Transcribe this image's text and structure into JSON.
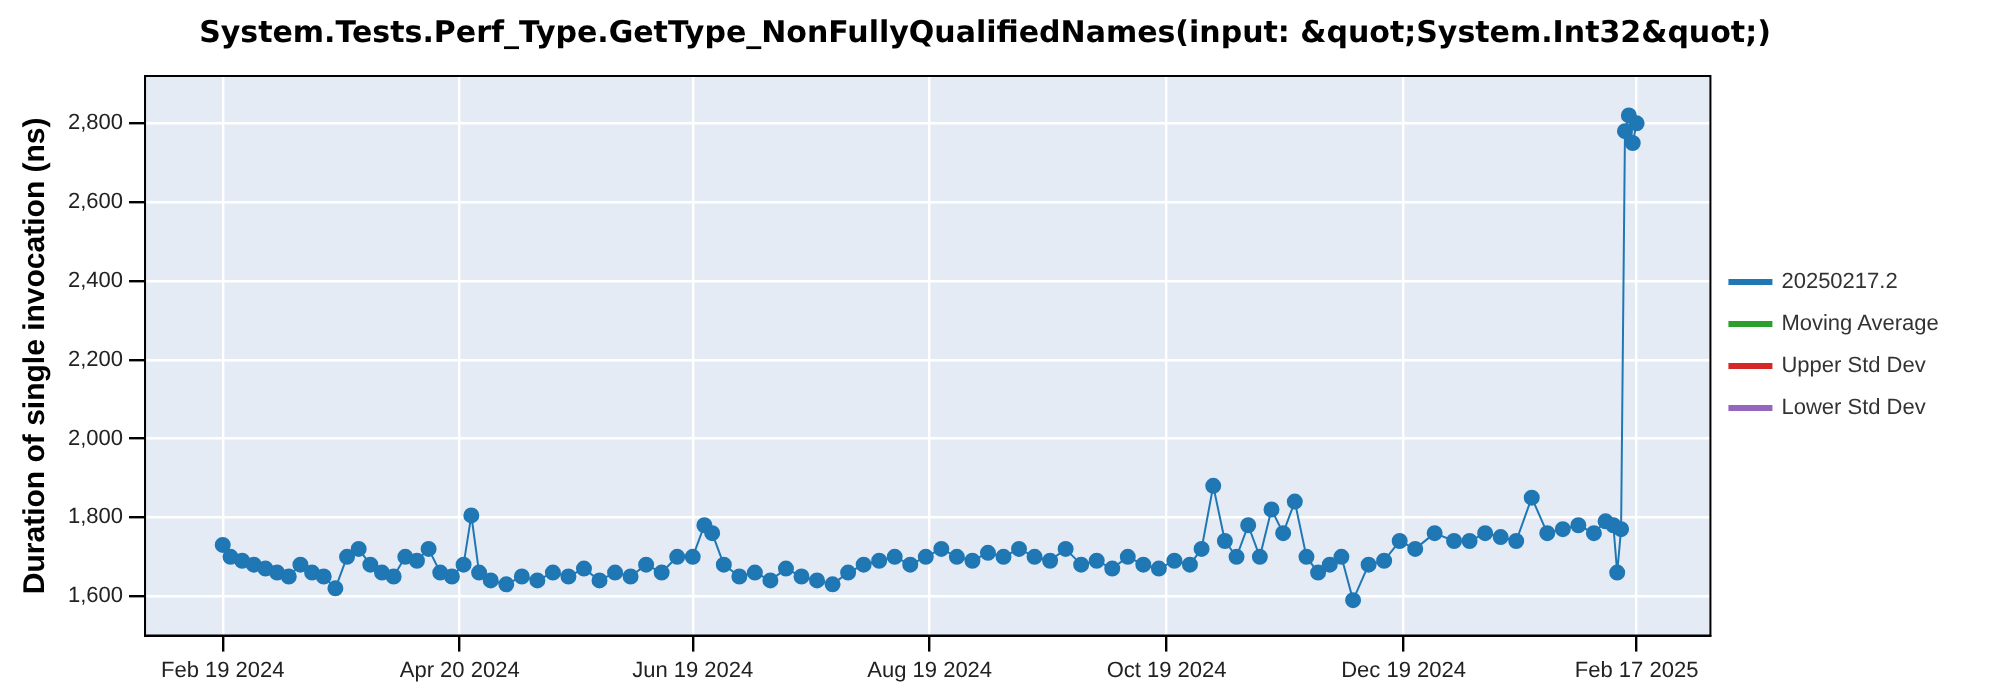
{
  "chart_data": {
    "type": "line",
    "title": "System.Tests.Perf_Type.GetType_NonFullyQualifiedNames(input: &quot;System.Int32&quot;)",
    "ylabel": "Duration of single invocation (ns)",
    "xlim": [
      "2024-01-30",
      "2025-03-08"
    ],
    "xticks": [
      {
        "value": "2024-02-19",
        "label": "Feb 19 2024"
      },
      {
        "value": "2024-04-20",
        "label": "Apr 20 2024"
      },
      {
        "value": "2024-06-19",
        "label": "Jun 19 2024"
      },
      {
        "value": "2024-08-19",
        "label": "Aug 19 2024"
      },
      {
        "value": "2024-10-19",
        "label": "Oct 19 2024"
      },
      {
        "value": "2024-12-19",
        "label": "Dec 19 2024"
      },
      {
        "value": "2025-02-17",
        "label": "Feb 17 2025"
      }
    ],
    "ylim": [
      1500,
      2920
    ],
    "yticks": [
      {
        "value": 1600,
        "label": "1,600"
      },
      {
        "value": 1800,
        "label": "1,800"
      },
      {
        "value": 2000,
        "label": "2,000"
      },
      {
        "value": 2200,
        "label": "2,200"
      },
      {
        "value": 2400,
        "label": "2,400"
      },
      {
        "value": 2600,
        "label": "2,600"
      },
      {
        "value": 2800,
        "label": "2,800"
      }
    ],
    "grid": true,
    "legend": "right",
    "marker": "circle",
    "series": [
      {
        "name": "20250217.2",
        "color": "#1f77b4",
        "x": [
          "2024-02-19",
          "2024-02-21",
          "2024-02-24",
          "2024-02-27",
          "2024-03-01",
          "2024-03-04",
          "2024-03-07",
          "2024-03-10",
          "2024-03-13",
          "2024-03-16",
          "2024-03-19",
          "2024-03-22",
          "2024-03-25",
          "2024-03-28",
          "2024-03-31",
          "2024-04-03",
          "2024-04-06",
          "2024-04-09",
          "2024-04-12",
          "2024-04-15",
          "2024-04-18",
          "2024-04-21",
          "2024-04-23",
          "2024-04-25",
          "2024-04-28",
          "2024-05-02",
          "2024-05-06",
          "2024-05-10",
          "2024-05-14",
          "2024-05-18",
          "2024-05-22",
          "2024-05-26",
          "2024-05-30",
          "2024-06-03",
          "2024-06-07",
          "2024-06-11",
          "2024-06-15",
          "2024-06-19",
          "2024-06-22",
          "2024-06-24",
          "2024-06-27",
          "2024-07-01",
          "2024-07-05",
          "2024-07-09",
          "2024-07-13",
          "2024-07-17",
          "2024-07-21",
          "2024-07-25",
          "2024-07-29",
          "2024-08-02",
          "2024-08-06",
          "2024-08-10",
          "2024-08-14",
          "2024-08-18",
          "2024-08-22",
          "2024-08-26",
          "2024-08-30",
          "2024-09-03",
          "2024-09-07",
          "2024-09-11",
          "2024-09-15",
          "2024-09-19",
          "2024-09-23",
          "2024-09-27",
          "2024-10-01",
          "2024-10-05",
          "2024-10-09",
          "2024-10-13",
          "2024-10-17",
          "2024-10-21",
          "2024-10-25",
          "2024-10-28",
          "2024-10-31",
          "2024-11-03",
          "2024-11-06",
          "2024-11-09",
          "2024-11-12",
          "2024-11-15",
          "2024-11-18",
          "2024-11-21",
          "2024-11-24",
          "2024-11-27",
          "2024-11-30",
          "2024-12-03",
          "2024-12-06",
          "2024-12-10",
          "2024-12-14",
          "2024-12-18",
          "2024-12-22",
          "2024-12-27",
          "2025-01-01",
          "2025-01-05",
          "2025-01-09",
          "2025-01-13",
          "2025-01-17",
          "2025-01-21",
          "2025-01-25",
          "2025-01-29",
          "2025-02-02",
          "2025-02-06",
          "2025-02-09",
          "2025-02-11",
          "2025-02-12",
          "2025-02-13",
          "2025-02-14",
          "2025-02-15",
          "2025-02-16",
          "2025-02-17"
        ],
        "values": [
          1730,
          1700,
          1690,
          1680,
          1670,
          1660,
          1650,
          1680,
          1660,
          1650,
          1620,
          1700,
          1720,
          1680,
          1660,
          1650,
          1700,
          1690,
          1720,
          1660,
          1650,
          1680,
          1805,
          1660,
          1640,
          1630,
          1650,
          1640,
          1660,
          1650,
          1670,
          1640,
          1660,
          1650,
          1680,
          1660,
          1700,
          1700,
          1780,
          1760,
          1680,
          1650,
          1660,
          1640,
          1670,
          1650,
          1640,
          1630,
          1660,
          1680,
          1690,
          1700,
          1680,
          1700,
          1720,
          1700,
          1690,
          1710,
          1700,
          1720,
          1700,
          1690,
          1720,
          1680,
          1690,
          1670,
          1700,
          1680,
          1670,
          1690,
          1680,
          1720,
          1880,
          1740,
          1700,
          1780,
          1700,
          1820,
          1760,
          1840,
          1700,
          1660,
          1680,
          1700,
          1590,
          1680,
          1690,
          1740,
          1720,
          1760,
          1740,
          1740,
          1760,
          1750,
          1740,
          1850,
          1760,
          1770,
          1780,
          1760,
          1790,
          1780,
          1660,
          1770,
          2780,
          2820,
          2750,
          2800
        ]
      },
      {
        "name": "Moving Average",
        "color": "#2ca02c"
      },
      {
        "name": "Upper Std Dev",
        "color": "#d62728"
      },
      {
        "name": "Lower Std Dev",
        "color": "#9467bd"
      }
    ]
  }
}
